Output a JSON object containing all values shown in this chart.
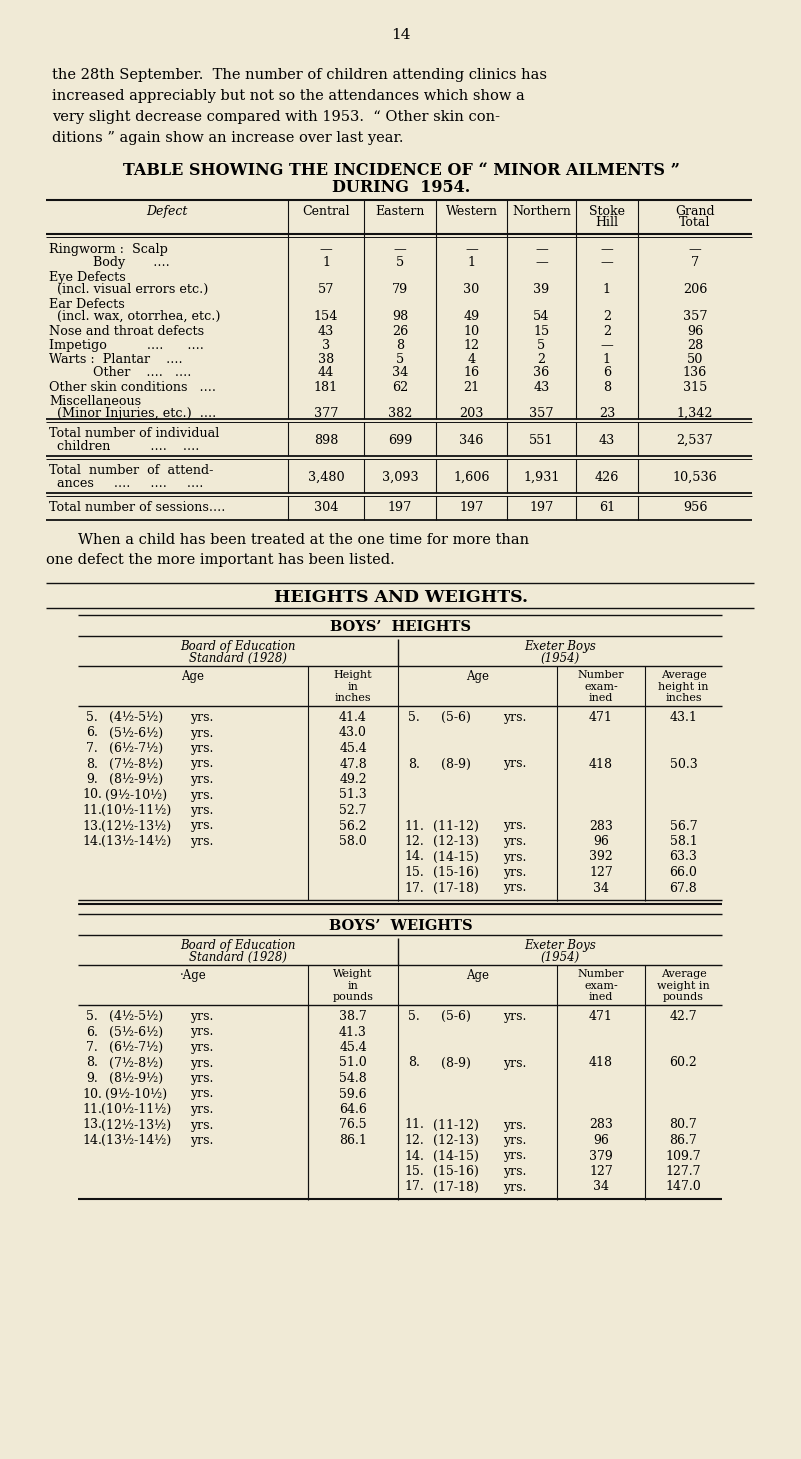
{
  "bg_color": "#f0ead6",
  "page_number": "14",
  "intro_text": [
    "the 28th September.  The number of children attending clinics has",
    "increased appreciably but not so the attendances which show a",
    "very slight decrease compared with 1953.  “ Other skin con-",
    "ditions ” again show an increase over last year."
  ],
  "table1_title1": "TABLE SHOWING THE INCIDENCE OF “ MINOR AILMENTS ”",
  "table1_title2": "DURING  1954.",
  "hw_title": "HEIGHTS AND WEIGHTS.",
  "heights_title": "BOYS’  HEIGHTS",
  "weights_title": "BOYS’  WEIGHTS",
  "heights_left_rows": [
    [
      "5.",
      "(4½-5½)",
      "yrs.",
      "41.4"
    ],
    [
      "6.",
      "(5½-6½)",
      "yrs.",
      "43.0"
    ],
    [
      "7.",
      "(6½-7½)",
      "yrs.",
      "45.4"
    ],
    [
      "8.",
      "(7½-8½)",
      "yrs.",
      "47.8"
    ],
    [
      "9.",
      "(8½-9½)",
      "yrs.",
      "49.2"
    ],
    [
      "10.",
      "(9½-10½)",
      "yrs.",
      "51.3"
    ],
    [
      "11.",
      "(10½-11½)",
      "yrs.",
      "52.7"
    ],
    [
      "13.",
      "(12½-13½)",
      "yrs.",
      "56.2"
    ],
    [
      "14.",
      "(13½-14½)",
      "yrs.",
      "58.0"
    ]
  ],
  "weights_left_rows": [
    [
      "5.",
      "(4½-5½)",
      "yrs.",
      "38.7"
    ],
    [
      "6.",
      "(5½-6½)",
      "yrs.",
      "41.3"
    ],
    [
      "7.",
      "(6½-7½)",
      "yrs.",
      "45.4"
    ],
    [
      "8.",
      "(7½-8½)",
      "yrs.",
      "51.0"
    ],
    [
      "9.",
      "(8½-9½)",
      "yrs.",
      "54.8"
    ],
    [
      "10.",
      "(9½-10½)",
      "yrs.",
      "59.6"
    ],
    [
      "11.",
      "(10½-11½)",
      "yrs.",
      "64.6"
    ],
    [
      "13.",
      "(12½-13½)",
      "yrs.",
      "76.5"
    ],
    [
      "14.",
      "(13½-14½)",
      "yrs.",
      "86.1"
    ]
  ]
}
